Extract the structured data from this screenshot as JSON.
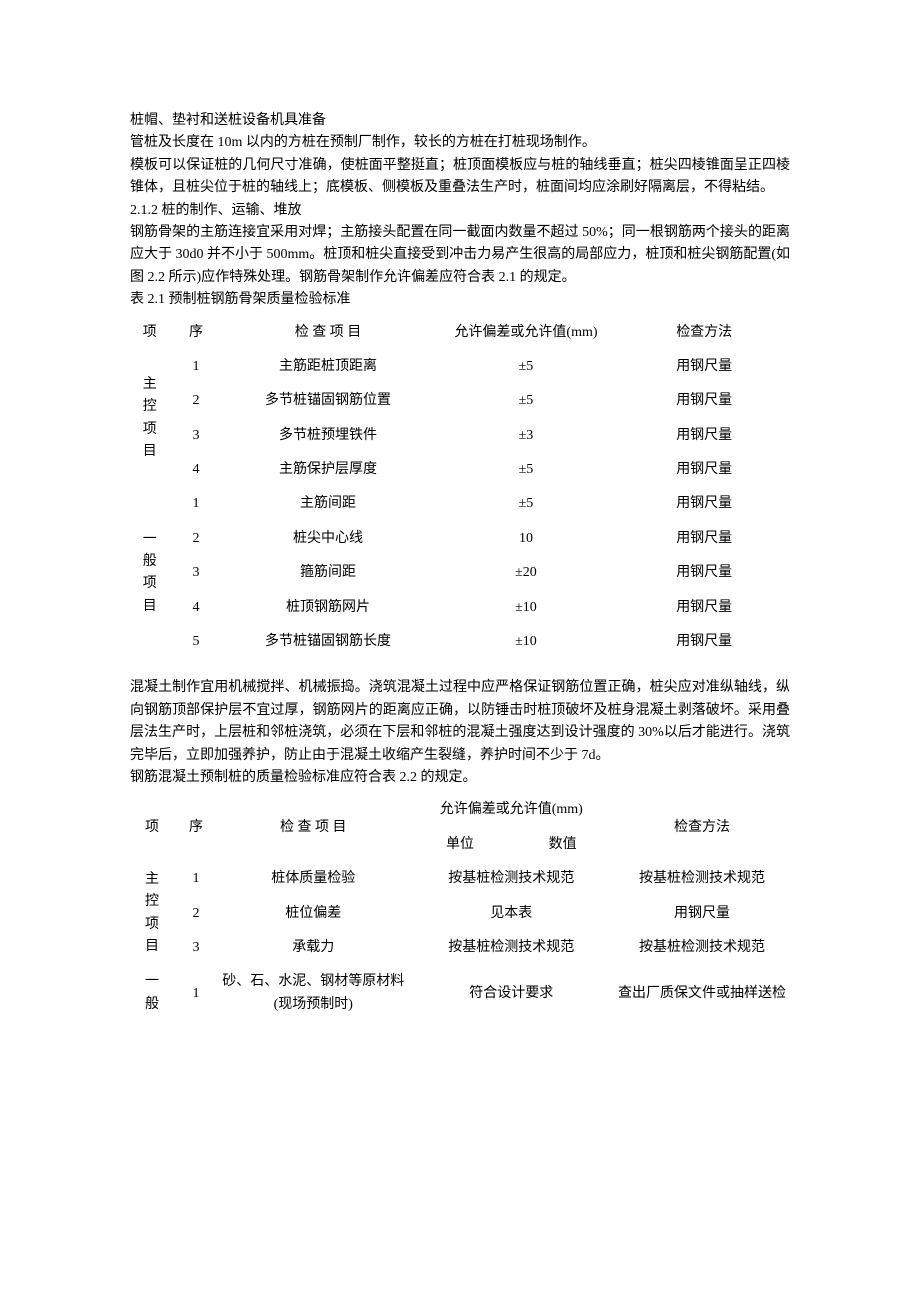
{
  "para1": "桩帽、垫衬和送桩设备机具准备",
  "para2": "管桩及长度在 10m 以内的方桩在预制厂制作，较长的方桩在打桩现场制作。",
  "para3": "模板可以保证桩的几何尺寸准确，使桩面平整挺直；桩顶面模板应与桩的轴线垂直；桩尖四棱锥面呈正四棱锥体，且桩尖位于桩的轴线上；底模板、侧模板及重叠法生产时，桩面间均应涂刷好隔离层，不得粘结。",
  "heading_212": "2.1.2  桩的制作、运输、堆放",
  "para4": "钢筋骨架的主筋连接宜采用对焊；主筋接头配置在同一截面内数量不超过 50%；同一根钢筋两个接头的距离应大于 30d0 并不小于 500mm。桩顶和桩尖直接受到冲击力易产生很高的局部应力，桩顶和桩尖钢筋配置(如图 2.2 所示)应作特殊处理。钢筋骨架制作允许偏差应符合表 2.1 的规定。",
  "table1_caption": "表 2.1   预制桩钢筋骨架质量检验标准",
  "table1": {
    "headers": {
      "cat": "项",
      "idx": "序",
      "item": "检   查   项   目",
      "tol": "允许偏差或允许值(mm)",
      "method": "检查方法"
    },
    "groupA_label": "主控项目",
    "groupA": [
      {
        "idx": "1",
        "item": "主筋距桩顶距离",
        "tol": "±5",
        "method": "用钢尺量"
      },
      {
        "idx": "2",
        "item": "多节桩锚固钢筋位置",
        "tol": "±5",
        "method": "用钢尺量"
      },
      {
        "idx": "3",
        "item": "多节桩预埋铁件",
        "tol": "±3",
        "method": "用钢尺量"
      },
      {
        "idx": "4",
        "item": "主筋保护层厚度",
        "tol": "±5",
        "method": "用钢尺量"
      }
    ],
    "groupB_label": "一般项目",
    "groupB": [
      {
        "idx": "1",
        "item": "主筋间距",
        "tol": "±5",
        "method": "用钢尺量"
      },
      {
        "idx": "2",
        "item": "桩尖中心线",
        "tol": "10",
        "method": "用钢尺量"
      },
      {
        "idx": "3",
        "item": "箍筋间距",
        "tol": "±20",
        "method": "用钢尺量"
      },
      {
        "idx": "4",
        "item": "桩顶钢筋网片",
        "tol": "±10",
        "method": "用钢尺量"
      },
      {
        "idx": "5",
        "item": "多节桩锚固钢筋长度",
        "tol": "±10",
        "method": "用钢尺量"
      }
    ]
  },
  "para5": "混凝土制作宜用机械搅拌、机械振捣。浇筑混凝土过程中应严格保证钢筋位置正确，桩尖应对准纵轴线，纵向钢筋顶部保护层不宜过厚，钢筋网片的距离应正确，以防锤击时桩顶破坏及桩身混凝土剥落破坏。采用叠层法生产时，上层桩和邻桩浇筑，必须在下层和邻桩的混凝土强度达到设计强度的 30%以后才能进行。浇筑完毕后，立即加强养护，防止由于混凝土收缩产生裂缝，养护时间不少于 7d。",
  "para6": "钢筋混凝土预制桩的质量检验标准应符合表 2.2 的规定。",
  "table2": {
    "headers": {
      "cat": "项",
      "idx": "序",
      "item": "检   查   项   目",
      "tol": "允许偏差或允许值(mm)",
      "tol_sub1": "单位",
      "tol_sub2": "数值",
      "method": "检查方法"
    },
    "groupA_label": "主控项目",
    "groupA": [
      {
        "idx": "1",
        "item": "桩体质量检验",
        "tol": "按基桩检测技术规范",
        "method": "按基桩检测技术规范"
      },
      {
        "idx": "2",
        "item": "桩位偏差",
        "tol": "见本表",
        "method": "用钢尺量"
      },
      {
        "idx": "3",
        "item": "承载力",
        "tol": "按基桩检测技术规范",
        "method": "按基桩检测技术规范"
      }
    ],
    "groupB_label": "一般",
    "groupB": [
      {
        "idx": "1",
        "item": "砂、石、水泥、钢材等原材料(现场预制时)",
        "tol": "符合设计要求",
        "method": "查出厂质保文件或抽样送检"
      }
    ]
  }
}
